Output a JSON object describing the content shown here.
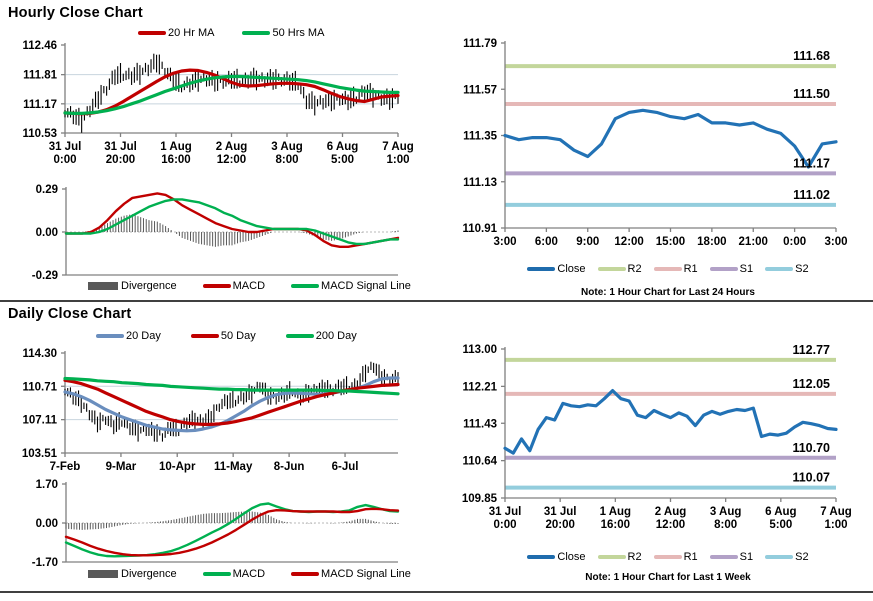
{
  "sections": [
    {
      "title": "Hourly Close Chart",
      "price_legend": [
        {
          "label": "20 Hr MA",
          "color": "#c00000"
        },
        {
          "label": "50 Hrs MA",
          "color": "#00b050"
        }
      ],
      "macd_legend": [
        {
          "label": "Divergence",
          "color": "#595959",
          "type": "bar"
        },
        {
          "label": "MACD",
          "color": "#c00000"
        },
        {
          "label": "MACD Signal Line",
          "color": "#00b050"
        }
      ],
      "sr_legend": [
        {
          "label": "Close",
          "color": "#1f6cad"
        },
        {
          "label": "R2",
          "color": "#c3d69b"
        },
        {
          "label": "R1",
          "color": "#e5b8b7"
        },
        {
          "label": "S1",
          "color": "#b2a1c7"
        },
        {
          "label": "S2",
          "color": "#93cddd"
        }
      ],
      "sr_note": "Note: 1 Hour Chart for Last 24 Hours"
    },
    {
      "title": "Daily Close Chart",
      "price_legend": [
        {
          "label": "20 Day",
          "color": "#6a8ebe"
        },
        {
          "label": "50 Day",
          "color": "#c00000"
        },
        {
          "label": "200 Day",
          "color": "#00b050"
        }
      ],
      "macd_legend": [
        {
          "label": "Divergence",
          "color": "#595959",
          "type": "bar"
        },
        {
          "label": "MACD",
          "color": "#00b050"
        },
        {
          "label": "MACD Signal Line",
          "color": "#c00000"
        }
      ],
      "sr_legend": [
        {
          "label": "Close",
          "color": "#1f6cad"
        },
        {
          "label": "R2",
          "color": "#c3d69b"
        },
        {
          "label": "R1",
          "color": "#e5b8b7"
        },
        {
          "label": "S1",
          "color": "#b2a1c7"
        },
        {
          "label": "S2",
          "color": "#93cddd"
        }
      ],
      "sr_note": "Note: 1 Hour Chart for Last 1 Week"
    }
  ],
  "colors": {
    "red": "#c00000",
    "green": "#00b050",
    "close_blue": "#2272b5",
    "ma20_blue": "#6a8ebe",
    "divergence_gray": "#595959",
    "r2": "#c3d69b",
    "r1": "#e5b8b7",
    "s1": "#b2a1c7",
    "s2": "#93cddd",
    "grid": "#c8d4de",
    "axis": "#808080"
  },
  "chart_data": [
    {
      "id": "hourly_price",
      "type": "candlestick",
      "title": "Hourly Close Chart",
      "ylim": [
        110.53,
        112.46
      ],
      "yticks": [
        112.46,
        111.81,
        111.17,
        110.53
      ],
      "gridlines": [
        111.81,
        111.17
      ],
      "xticklabels": [
        [
          "31 Jul",
          "0:00"
        ],
        [
          "31 Jul",
          "20:00"
        ],
        [
          "1 Aug",
          "16:00"
        ],
        [
          "2 Aug",
          "12:00"
        ],
        [
          "3 Aug",
          "8:00"
        ],
        [
          "6 Aug",
          "5:00"
        ],
        [
          "7 Aug",
          "1:00"
        ]
      ],
      "series": [
        {
          "name": "Close",
          "role": "candles",
          "color": "#000000",
          "values": [
            111.0,
            110.92,
            110.8,
            111.05,
            111.3,
            111.5,
            111.8,
            111.8,
            111.78,
            111.85,
            111.95,
            112.1,
            111.9,
            111.7,
            111.55,
            111.62,
            111.7,
            111.72,
            111.68,
            111.65,
            111.72,
            111.65,
            111.7,
            111.73,
            111.7,
            111.72,
            111.7,
            111.68,
            111.6,
            111.25,
            111.18,
            111.22,
            111.25,
            111.28,
            111.25,
            111.3,
            111.45,
            111.35,
            111.3,
            111.28,
            111.32
          ]
        },
        {
          "name": "20 Hr MA",
          "role": "line",
          "color": "#c00000",
          "values": [
            110.97,
            110.96,
            110.95,
            110.96,
            110.99,
            111.04,
            111.12,
            111.22,
            111.33,
            111.44,
            111.55,
            111.66,
            111.76,
            111.84,
            111.89,
            111.91,
            111.9,
            111.86,
            111.8,
            111.72,
            111.64,
            111.58,
            111.56,
            111.57,
            111.59,
            111.61,
            111.62,
            111.62,
            111.61,
            111.59,
            111.55,
            111.48,
            111.4,
            111.33,
            111.28,
            111.24,
            111.22,
            111.27,
            111.32,
            111.34,
            111.35
          ]
        },
        {
          "name": "50 Hrs MA",
          "role": "line",
          "color": "#00b050",
          "values": [
            110.97,
            110.96,
            110.96,
            110.97,
            110.99,
            111.02,
            111.06,
            111.11,
            111.17,
            111.23,
            111.3,
            111.37,
            111.44,
            111.5,
            111.56,
            111.62,
            111.67,
            111.71,
            111.74,
            111.76,
            111.77,
            111.77,
            111.76,
            111.75,
            111.74,
            111.73,
            111.72,
            111.71,
            111.7,
            111.68,
            111.65,
            111.61,
            111.57,
            111.53,
            111.5,
            111.47,
            111.45,
            111.44,
            111.43,
            111.42,
            111.42
          ]
        }
      ]
    },
    {
      "id": "hourly_macd",
      "type": "line",
      "ylim": [
        -0.29,
        0.29
      ],
      "yticks": [
        0.29,
        0.0,
        -0.29
      ],
      "divergence_color": "#595959",
      "series": [
        {
          "name": "MACD",
          "role": "macd",
          "color": "#c00000",
          "values": [
            -0.01,
            -0.01,
            -0.01,
            0.0,
            0.03,
            0.08,
            0.14,
            0.19,
            0.23,
            0.24,
            0.25,
            0.26,
            0.25,
            0.22,
            0.18,
            0.15,
            0.12,
            0.09,
            0.06,
            0.04,
            0.02,
            0.01,
            0.0,
            0.0,
            0.01,
            0.02,
            0.02,
            0.02,
            0.02,
            0.01,
            -0.02,
            -0.06,
            -0.09,
            -0.1,
            -0.1,
            -0.09,
            -0.08,
            -0.07,
            -0.06,
            -0.05,
            -0.04
          ]
        },
        {
          "name": "MACD Signal Line",
          "role": "signal",
          "color": "#00b050",
          "values": [
            -0.01,
            -0.01,
            -0.01,
            -0.01,
            0.0,
            0.02,
            0.05,
            0.08,
            0.11,
            0.14,
            0.17,
            0.19,
            0.21,
            0.22,
            0.22,
            0.21,
            0.2,
            0.18,
            0.16,
            0.13,
            0.11,
            0.08,
            0.06,
            0.04,
            0.03,
            0.02,
            0.02,
            0.02,
            0.02,
            0.02,
            0.01,
            -0.01,
            -0.03,
            -0.05,
            -0.07,
            -0.08,
            -0.08,
            -0.07,
            -0.06,
            -0.05,
            -0.05
          ]
        }
      ]
    },
    {
      "id": "hourly_sr",
      "type": "line",
      "note": "Note: 1 Hour Chart for Last 24 Hours",
      "ylim": [
        110.91,
        111.79
      ],
      "yticks": [
        111.79,
        111.57,
        111.35,
        111.13,
        110.91
      ],
      "xticklabels": [
        "3:00",
        "6:00",
        "9:00",
        "12:00",
        "15:00",
        "18:00",
        "21:00",
        "0:00",
        "3:00"
      ],
      "levels": [
        {
          "name": "R2",
          "value": 111.68,
          "color": "#c3d69b"
        },
        {
          "name": "R1",
          "value": 111.5,
          "color": "#e5b8b7"
        },
        {
          "name": "S1",
          "value": 111.17,
          "color": "#b2a1c7"
        },
        {
          "name": "S2",
          "value": 111.02,
          "color": "#93cddd"
        }
      ],
      "series": [
        {
          "name": "Close",
          "role": "line",
          "color": "#2272b5",
          "values": [
            111.35,
            111.33,
            111.34,
            111.34,
            111.33,
            111.28,
            111.25,
            111.31,
            111.43,
            111.46,
            111.47,
            111.46,
            111.44,
            111.43,
            111.45,
            111.41,
            111.41,
            111.4,
            111.41,
            111.38,
            111.36,
            111.3,
            111.2,
            111.31,
            111.32
          ]
        }
      ]
    },
    {
      "id": "daily_price",
      "type": "candlestick",
      "title": "Daily Close Chart",
      "ylim": [
        103.51,
        114.3
      ],
      "yticks": [
        114.3,
        110.71,
        107.11,
        103.51
      ],
      "gridlines": [
        110.71,
        107.11
      ],
      "xtick_pos": [
        0,
        0.168,
        0.337,
        0.505,
        0.673,
        0.841
      ],
      "xticklabels": [
        "7-Feb",
        "9-Mar",
        "10-Apr",
        "11-May",
        "8-Jun",
        "6-Jul"
      ],
      "series": [
        {
          "name": "Close",
          "role": "candles",
          "color": "#000000",
          "values": [
            110.3,
            109.6,
            109.0,
            107.8,
            106.8,
            107.2,
            106.5,
            106.9,
            106.3,
            105.9,
            106.1,
            105.8,
            105.4,
            106.3,
            105.9,
            106.9,
            107.1,
            107.0,
            107.4,
            108.6,
            109.2,
            109.1,
            109.6,
            110.0,
            110.8,
            109.8,
            109.4,
            109.9,
            110.2,
            109.5,
            110.1,
            110.4,
            110.5,
            110.3,
            110.7,
            110.6,
            110.9,
            112.3,
            112.9,
            111.7,
            111.4,
            111.7
          ]
        },
        {
          "name": "20 Day",
          "role": "line",
          "color": "#6a8ebe",
          "values": [
            110.1,
            109.9,
            109.6,
            109.2,
            108.7,
            108.2,
            107.8,
            107.4,
            107.1,
            106.8,
            106.5,
            106.3,
            106.1,
            106.0,
            105.95,
            105.9,
            105.95,
            106.1,
            106.3,
            106.6,
            107.0,
            107.5,
            108.0,
            108.6,
            109.1,
            109.5,
            109.8,
            109.95,
            110.0,
            109.95,
            109.9,
            109.85,
            109.9,
            110.0,
            110.15,
            110.3,
            110.5,
            110.8,
            111.2,
            111.5,
            111.6,
            111.6
          ]
        },
        {
          "name": "50 Day",
          "role": "line",
          "color": "#c00000",
          "values": [
            111.35,
            111.2,
            111.0,
            110.7,
            110.4,
            110.0,
            109.6,
            109.2,
            108.8,
            108.4,
            108.0,
            107.7,
            107.4,
            107.1,
            106.9,
            106.75,
            106.65,
            106.6,
            106.6,
            106.65,
            106.75,
            106.9,
            107.1,
            107.3,
            107.6,
            107.9,
            108.2,
            108.5,
            108.8,
            109.1,
            109.35,
            109.6,
            109.8,
            110.0,
            110.2,
            110.35,
            110.5,
            110.6,
            110.7,
            110.8,
            110.85,
            110.9
          ]
        },
        {
          "name": "200 Day",
          "role": "line",
          "color": "#00b050",
          "values": [
            111.55,
            111.5,
            111.45,
            111.4,
            111.3,
            111.25,
            111.2,
            111.1,
            111.05,
            111.0,
            110.9,
            110.85,
            110.8,
            110.7,
            110.65,
            110.6,
            110.55,
            110.5,
            110.45,
            110.4,
            110.4,
            110.35,
            110.35,
            110.3,
            110.3,
            110.3,
            110.3,
            110.3,
            110.3,
            110.3,
            110.3,
            110.3,
            110.25,
            110.25,
            110.2,
            110.2,
            110.15,
            110.1,
            110.05,
            110.0,
            109.95,
            109.9
          ]
        }
      ]
    },
    {
      "id": "daily_macd",
      "type": "line",
      "ylim": [
        -1.7,
        1.7
      ],
      "yticks": [
        1.7,
        0.0,
        -1.7
      ],
      "divergence_color": "#595959",
      "series": [
        {
          "name": "MACD",
          "role": "macd",
          "color": "#00b050",
          "values": [
            -0.85,
            -1.0,
            -1.15,
            -1.28,
            -1.38,
            -1.44,
            -1.45,
            -1.44,
            -1.43,
            -1.42,
            -1.4,
            -1.36,
            -1.3,
            -1.22,
            -1.1,
            -0.95,
            -0.78,
            -0.6,
            -0.42,
            -0.25,
            -0.05,
            0.18,
            0.42,
            0.65,
            0.8,
            0.85,
            0.72,
            0.6,
            0.52,
            0.5,
            0.48,
            0.5,
            0.5,
            0.48,
            0.5,
            0.55,
            0.7,
            0.78,
            0.7,
            0.6,
            0.52,
            0.5
          ]
        },
        {
          "name": "MACD Signal Line",
          "role": "signal",
          "color": "#c00000",
          "values": [
            -0.6,
            -0.72,
            -0.85,
            -1.0,
            -1.12,
            -1.22,
            -1.3,
            -1.36,
            -1.4,
            -1.41,
            -1.41,
            -1.4,
            -1.38,
            -1.35,
            -1.3,
            -1.22,
            -1.12,
            -1.0,
            -0.85,
            -0.68,
            -0.5,
            -0.3,
            -0.08,
            0.15,
            0.35,
            0.5,
            0.56,
            0.55,
            0.52,
            0.5,
            0.5,
            0.5,
            0.5,
            0.5,
            0.48,
            0.48,
            0.52,
            0.6,
            0.62,
            0.6,
            0.56,
            0.54
          ]
        }
      ]
    },
    {
      "id": "daily_sr",
      "type": "line",
      "note": "Note: 1 Hour Chart for Last 1 Week",
      "ylim": [
        109.85,
        113.0
      ],
      "yticks": [
        113.0,
        112.21,
        111.43,
        110.64,
        109.85
      ],
      "xticklabels": [
        [
          "31 Jul",
          "0:00"
        ],
        [
          "31 Jul",
          "20:00"
        ],
        [
          "1 Aug",
          "16:00"
        ],
        [
          "2 Aug",
          "12:00"
        ],
        [
          "3 Aug",
          "8:00"
        ],
        [
          "6 Aug",
          "5:00"
        ],
        [
          "7 Aug",
          "1:00"
        ]
      ],
      "levels": [
        {
          "name": "R2",
          "value": 112.77,
          "color": "#c3d69b"
        },
        {
          "name": "R1",
          "value": 112.05,
          "color": "#e5b8b7"
        },
        {
          "name": "S1",
          "value": 110.7,
          "color": "#b2a1c7"
        },
        {
          "name": "S2",
          "value": 110.07,
          "color": "#93cddd"
        }
      ],
      "series": [
        {
          "name": "Close",
          "role": "line",
          "color": "#2272b5",
          "values": [
            110.9,
            110.8,
            111.1,
            110.85,
            111.3,
            111.55,
            111.5,
            111.85,
            111.8,
            111.78,
            111.82,
            111.8,
            111.95,
            112.12,
            111.95,
            111.9,
            111.6,
            111.55,
            111.7,
            111.62,
            111.55,
            111.65,
            111.58,
            111.38,
            111.6,
            111.68,
            111.62,
            111.68,
            111.72,
            111.7,
            111.75,
            111.15,
            111.2,
            111.18,
            111.22,
            111.35,
            111.45,
            111.42,
            111.38,
            111.32,
            111.3
          ]
        }
      ]
    }
  ]
}
